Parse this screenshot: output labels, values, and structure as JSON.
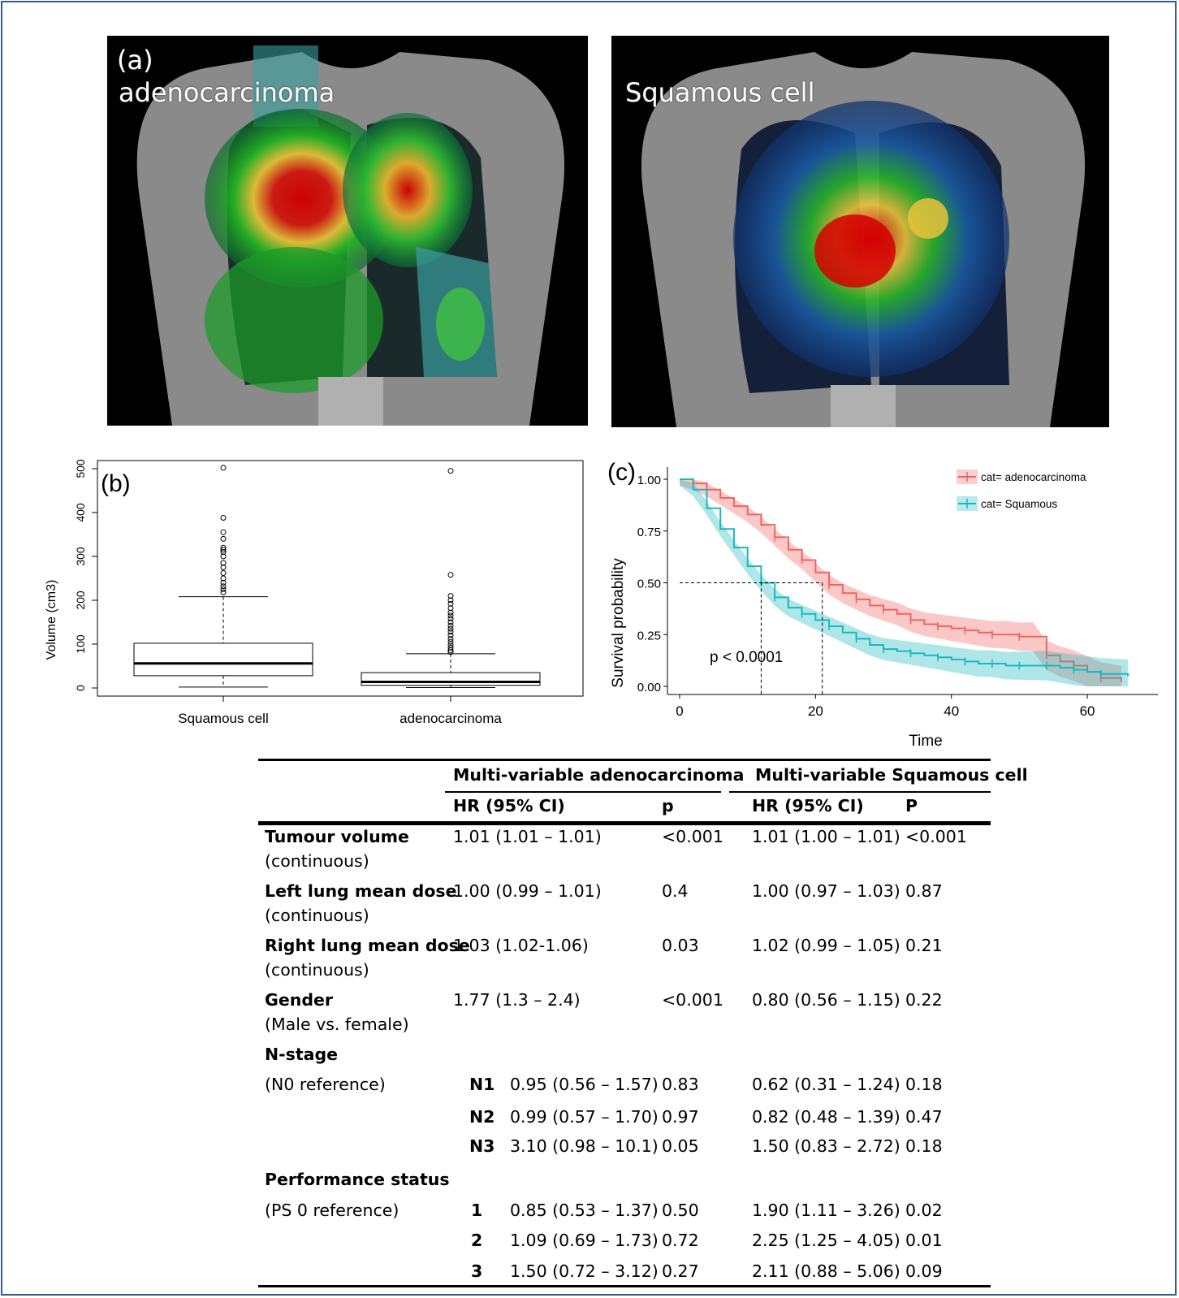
{
  "panel_a": {
    "left_label": "(a)",
    "left_title": "adenocarcinoma",
    "right_title": "Squamous cell"
  },
  "chart_data": [
    {
      "type": "box",
      "panel_label": "(b)",
      "ylabel": "Volume (cm3)",
      "ylim": [
        0,
        500
      ],
      "yticks": [
        "0",
        "100",
        "200",
        "300",
        "400",
        "500"
      ],
      "categories": [
        "Squamous cell",
        "adenocarcinoma"
      ],
      "boxes": [
        {
          "name": "Squamous cell",
          "whisker_low": 2,
          "q1": 28,
          "median": 56,
          "q3": 102,
          "whisker_high": 208,
          "outliers": [
            218,
            225,
            232,
            240,
            250,
            262,
            275,
            285,
            300,
            310,
            315,
            320,
            340,
            355,
            388,
            502
          ]
        },
        {
          "name": "adenocarcinoma",
          "whisker_low": 1,
          "q1": 6,
          "median": 14,
          "q3": 35,
          "whisker_high": 78,
          "outliers": [
            82,
            86,
            92,
            98,
            105,
            112,
            120,
            128,
            135,
            142,
            150,
            158,
            165,
            172,
            182,
            192,
            200,
            210,
            258,
            495
          ]
        }
      ]
    },
    {
      "type": "line",
      "panel_label": "(c)",
      "xlabel": "Time",
      "ylabel": "Survival probability",
      "xlim": [
        0,
        68
      ],
      "ylim": [
        0,
        1
      ],
      "xticks": [
        "0",
        "20",
        "40",
        "60"
      ],
      "yticks": [
        "0.00",
        "0.25",
        "0.50",
        "0.75",
        "1.00"
      ],
      "annotation": "p < 0.0001",
      "colors": {
        "adeno": "#f0645e",
        "squamous": "#1bb8bd"
      },
      "series": [
        {
          "name": "cat= adenocarcinoma",
          "x": [
            0,
            2,
            4,
            6,
            8,
            10,
            12,
            14,
            16,
            18,
            20,
            22,
            24,
            26,
            28,
            30,
            32,
            34,
            36,
            38,
            40,
            42,
            44,
            46,
            48,
            50,
            52,
            54,
            56,
            58,
            60,
            62,
            65
          ],
          "y": [
            1.0,
            0.98,
            0.95,
            0.91,
            0.87,
            0.83,
            0.78,
            0.72,
            0.66,
            0.61,
            0.55,
            0.49,
            0.45,
            0.42,
            0.39,
            0.37,
            0.35,
            0.32,
            0.3,
            0.29,
            0.28,
            0.27,
            0.26,
            0.25,
            0.25,
            0.24,
            0.24,
            0.15,
            0.12,
            0.1,
            0.07,
            0.04,
            0.02
          ]
        },
        {
          "name": "cat= Squamous",
          "x": [
            0,
            2,
            4,
            6,
            8,
            10,
            12,
            14,
            16,
            18,
            20,
            22,
            24,
            26,
            28,
            30,
            32,
            34,
            36,
            38,
            40,
            42,
            44,
            46,
            48,
            50,
            52,
            54,
            56,
            58,
            60,
            62,
            66
          ],
          "y": [
            1.0,
            0.95,
            0.86,
            0.76,
            0.67,
            0.58,
            0.5,
            0.43,
            0.38,
            0.35,
            0.32,
            0.29,
            0.26,
            0.23,
            0.2,
            0.18,
            0.17,
            0.16,
            0.15,
            0.14,
            0.13,
            0.12,
            0.11,
            0.11,
            0.1,
            0.1,
            0.1,
            0.1,
            0.09,
            0.08,
            0.07,
            0.06,
            0.05
          ]
        }
      ],
      "median_lines": [
        12,
        21
      ]
    }
  ],
  "table": {
    "header1": [
      "Multi-variable adenocarcinoma",
      "Multi-variable Squamous cell"
    ],
    "header2": [
      "HR (95% CI)",
      "p",
      "HR (95% CI)",
      "P"
    ],
    "rows": [
      {
        "var": "Tumour volume",
        "sub": "(continuous)",
        "hr1": "1.01 (1.01 – 1.01)",
        "p1": "<0.001",
        "hr2": "1.01 (1.00 – 1.01)",
        "p2": "<0.001"
      },
      {
        "var": "Left lung mean dose",
        "sub": "(continuous)",
        "hr1": "1.00 (0.99 – 1.01)",
        "p1": "0.4",
        "hr2": "1.00 (0.97 – 1.03)",
        "p2": "0.87"
      },
      {
        "var": "Right lung mean dose",
        "sub": "(continuous)",
        "hr1": "1.03 (1.02-1.06)",
        "p1": "0.03",
        "hr2": "1.02 (0.99 – 1.05)",
        "p2": "0.21"
      },
      {
        "var": "Gender",
        "sub": "(Male vs. female)",
        "hr1": "1.77 (1.3 – 2.4)",
        "p1": "<0.001",
        "hr2": "0.80 (0.56 – 1.15)",
        "p2": "0.22"
      }
    ],
    "nstage": {
      "title": "N-stage",
      "ref": "(N0 reference)",
      "levels": [
        {
          "lvl": "N1",
          "hr1": "0.95 (0.56 – 1.57)",
          "p1": "0.83",
          "hr2": "0.62 (0.31 – 1.24)",
          "p2": "0.18"
        },
        {
          "lvl": "N2",
          "hr1": "0.99 (0.57 – 1.70)",
          "p1": "0.97",
          "hr2": "0.82 (0.48 – 1.39)",
          "p2": "0.47"
        },
        {
          "lvl": "N3",
          "hr1": "3.10 (0.98 – 10.1)",
          "p1": "0.05",
          "hr2": "1.50 (0.83 – 2.72)",
          "p2": "0.18"
        }
      ]
    },
    "ps": {
      "title": "Performance status",
      "ref": "(PS 0 reference)",
      "levels": [
        {
          "lvl": "1",
          "hr1": "0.85 (0.53 – 1.37)",
          "p1": "0.50",
          "hr2": "1.90 (1.11 – 3.26)",
          "p2": "0.02"
        },
        {
          "lvl": "2",
          "hr1": "1.09 (0.69 – 1.73)",
          "p1": "0.72",
          "hr2": "2.25 (1.25 – 4.05)",
          "p2": "0.01"
        },
        {
          "lvl": "3",
          "hr1": "1.50 (0.72 – 3.12)",
          "p1": "0.27",
          "hr2": "2.11 (0.88 – 5.06)",
          "p2": "0.09"
        }
      ]
    }
  }
}
